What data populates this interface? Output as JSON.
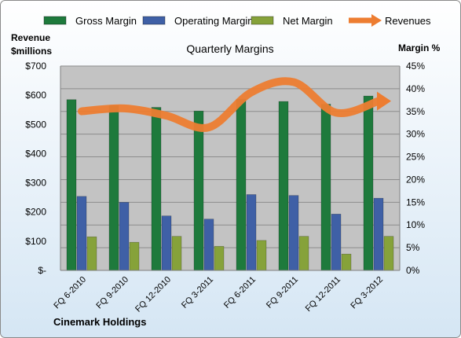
{
  "chart_data": {
    "type": "bar",
    "title": "Quarterly Margins",
    "ylabel_left_line1": "Revenue",
    "ylabel_left_line2": "$millions",
    "ylabel_right": "Margin %",
    "footer": "Cinemark Holdings",
    "categories": [
      "FQ 6-2010",
      "FQ 9-2010",
      "FQ 12-2010",
      "FQ 3-2011",
      "FQ 6-2011",
      "FQ 9-2011",
      "FQ 12-2011",
      "FQ 3-2012"
    ],
    "left_ticks": [
      "$-",
      "$100",
      "$200",
      "$300",
      "$400",
      "$500",
      "$600",
      "$700"
    ],
    "right_ticks": [
      "0%",
      "5%",
      "10%",
      "15%",
      "20%",
      "25%",
      "30%",
      "35%",
      "40%",
      "45%"
    ],
    "ylim_left": [
      0,
      700
    ],
    "ylim_right": [
      0,
      45
    ],
    "grid": true,
    "legend_position": "top",
    "series": [
      {
        "name": "Gross Margin",
        "axis": "right",
        "kind": "bar",
        "color": "#1e7a3c",
        "values": [
          37.6,
          36.3,
          35.9,
          35.1,
          37.7,
          37.2,
          36.6,
          38.4
        ]
      },
      {
        "name": "Operating Margin",
        "axis": "right",
        "kind": "bar",
        "color": "#3f60a6",
        "values": [
          16.3,
          15.0,
          12.0,
          11.3,
          16.7,
          16.5,
          12.4,
          15.9
        ]
      },
      {
        "name": "Net Margin",
        "axis": "right",
        "kind": "bar",
        "color": "#86a23a",
        "values": [
          7.4,
          6.2,
          7.5,
          5.3,
          6.6,
          7.5,
          3.6,
          7.5
        ]
      },
      {
        "name": "Revenues",
        "axis": "left",
        "kind": "line",
        "color": "#ed7d31",
        "values": [
          545,
          555,
          530,
          490,
          610,
          645,
          540,
          580
        ]
      }
    ]
  }
}
